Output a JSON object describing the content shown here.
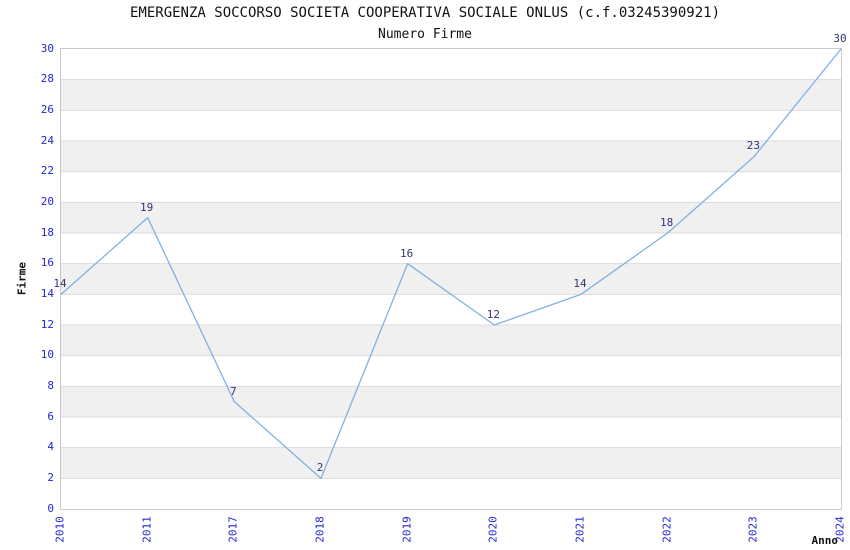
{
  "chart_data": {
    "type": "line",
    "title": "EMERGENZA SOCCORSO SOCIETA COOPERATIVA SOCIALE ONLUS (c.f.03245390921)",
    "subtitle": "Numero Firme",
    "xlabel": "Anno",
    "ylabel": "Firme",
    "categories": [
      "2010",
      "2011",
      "2017",
      "2018",
      "2019",
      "2020",
      "2021",
      "2022",
      "2023",
      "2024"
    ],
    "series": [
      {
        "name": "Numero Firme",
        "values": [
          14,
          19,
          7,
          2,
          16,
          12,
          14,
          18,
          23,
          30
        ]
      }
    ],
    "ylim": [
      0,
      30
    ],
    "ytick_step": 2,
    "grid": "horizontal-lines-with-alternating-bands",
    "legend": "none",
    "point_labels_shown": true,
    "colors": {
      "line": "#7fb1e6",
      "tick_label": "#2525d6",
      "point_label": "#333377",
      "band": "#f0f0f0",
      "grid_line": "#dcdcdc",
      "plot_border": "#c9c9c9",
      "text": "#111111",
      "background": "#ffffff"
    }
  }
}
